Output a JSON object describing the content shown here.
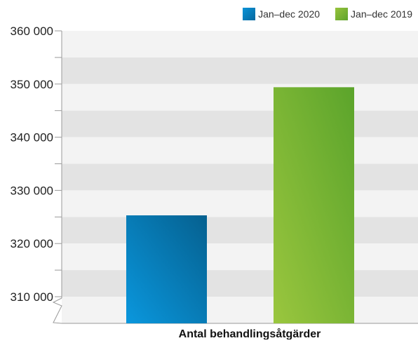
{
  "chart_data": {
    "type": "bar",
    "title": "",
    "xlabel": "Antal behandlingsåtgärder",
    "ylabel": "",
    "categories": [
      "Antal behandlingsåtgärder"
    ],
    "series": [
      {
        "name": "Jan–dec 2020",
        "values": [
          325300
        ],
        "color": "#0a6fa6"
      },
      {
        "name": "Jan–dec 2019",
        "values": [
          349400
        ],
        "color": "#6aaa2e"
      }
    ],
    "ylim": [
      305000,
      360000
    ],
    "axis_break": true,
    "yticks": [
      {
        "value": 310000,
        "label": "310 000"
      },
      {
        "value": 320000,
        "label": "320 000"
      },
      {
        "value": 330000,
        "label": "330 000"
      },
      {
        "value": 340000,
        "label": "340 000"
      },
      {
        "value": 350000,
        "label": "350 000"
      },
      {
        "value": 360000,
        "label": "360 000"
      }
    ],
    "grid": true,
    "legend_position": "top-right"
  }
}
